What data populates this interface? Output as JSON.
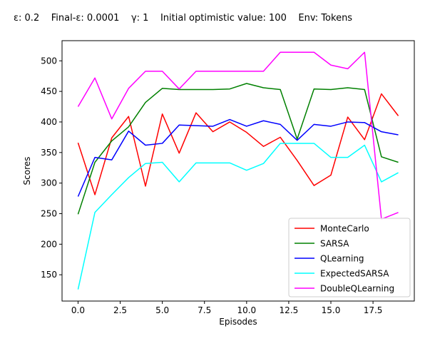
{
  "chart_data": {
    "type": "line",
    "title": "ε: 0.2    Final-ε: 0.0001    γ: 1    Initial optimistic value: 100    Env: Tokens",
    "xlabel": "Episodes",
    "ylabel": "Scores",
    "xlim": [
      -0.95,
      19.95
    ],
    "ylim": [
      107,
      533
    ],
    "xticks": [
      0,
      2.5,
      5,
      7.5,
      10,
      12.5,
      15,
      17.5
    ],
    "xtick_labels": [
      "0.0",
      "2.5",
      "5.0",
      "7.5",
      "10.0",
      "12.5",
      "15.0",
      "17.5"
    ],
    "yticks": [
      150,
      200,
      250,
      300,
      350,
      400,
      450,
      500
    ],
    "ytick_labels": [
      "150",
      "200",
      "250",
      "300",
      "350",
      "400",
      "450",
      "500"
    ],
    "grid": false,
    "legend_position": "lower-right",
    "x": [
      0,
      1,
      2,
      3,
      4,
      5,
      6,
      7,
      8,
      9,
      10,
      11,
      12,
      13,
      14,
      15,
      16,
      17,
      18,
      19
    ],
    "series": [
      {
        "name": "MonteCarlo",
        "color": "#ff0000",
        "values": [
          366,
          281,
          374,
          409,
          295,
          413,
          349,
          415,
          384,
          400,
          383,
          360,
          375,
          337,
          296,
          313,
          408,
          371,
          446,
          410
        ]
      },
      {
        "name": "SARSA",
        "color": "#008000",
        "values": [
          249,
          334,
          369,
          392,
          432,
          455,
          453,
          453,
          453,
          454,
          463,
          456,
          453,
          372,
          454,
          453,
          456,
          453,
          343,
          334
        ]
      },
      {
        "name": "QLearning",
        "color": "#0000ff",
        "values": [
          278,
          342,
          338,
          385,
          362,
          365,
          395,
          394,
          393,
          404,
          393,
          402,
          396,
          370,
          396,
          393,
          400,
          399,
          384,
          379
        ]
      },
      {
        "name": "ExpectedSARSA",
        "color": "#00ffff",
        "values": [
          126,
          252,
          281,
          309,
          332,
          334,
          302,
          333,
          333,
          333,
          321,
          332,
          365,
          365,
          365,
          342,
          342,
          362,
          302,
          317
        ]
      },
      {
        "name": "DoubleQLearning",
        "color": "#ff00ff",
        "values": [
          425,
          472,
          405,
          455,
          483,
          483,
          454,
          483,
          483,
          483,
          483,
          483,
          514,
          514,
          514,
          493,
          487,
          514,
          241,
          252
        ]
      }
    ]
  }
}
